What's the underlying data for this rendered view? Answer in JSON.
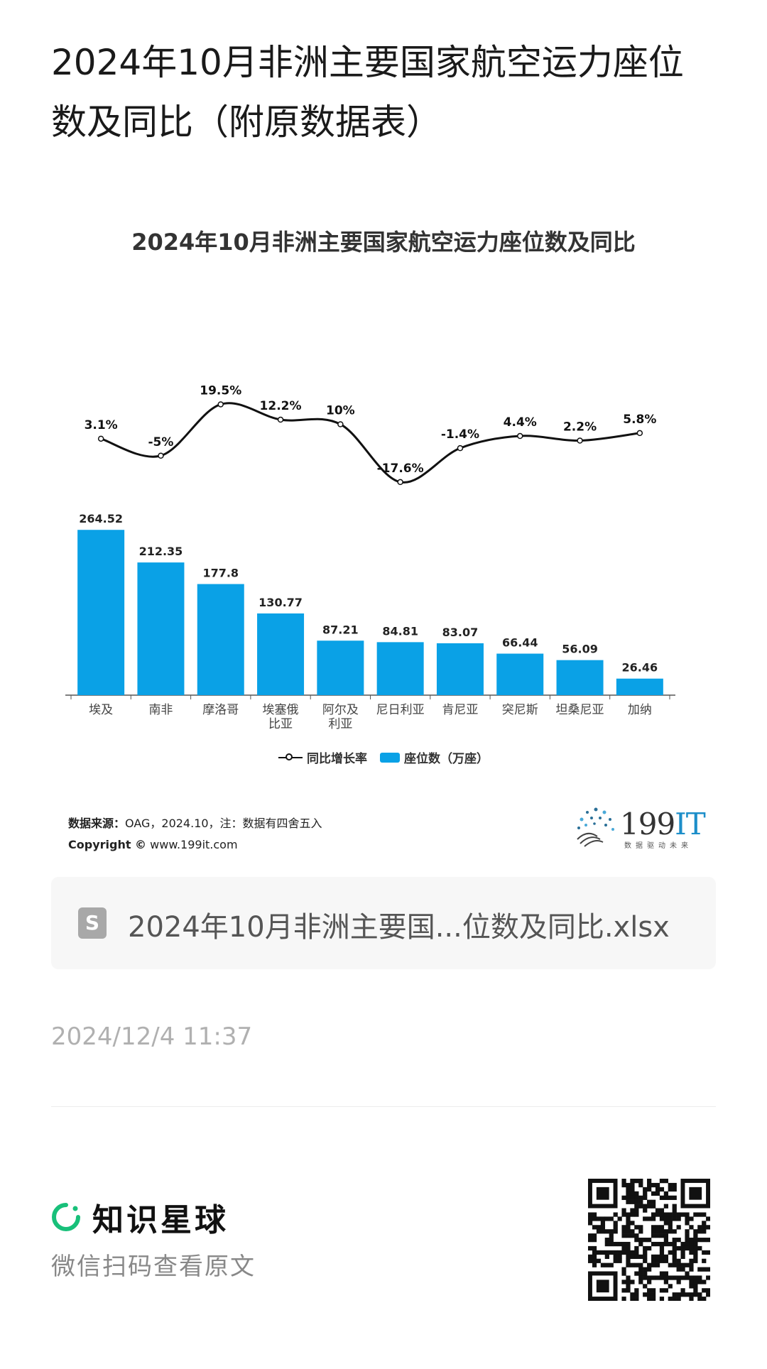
{
  "post": {
    "title": "2024年10月非洲主要国家航空运力座位数及同比（附原数据表）"
  },
  "chart_data": {
    "type": "bar",
    "title": "2024年10月非洲主要国家航空运力座位数及同比",
    "categories": [
      "埃及",
      "南非",
      "摩洛哥",
      "埃塞俄比亚",
      "阿尔及利亚",
      "尼日利亚",
      "肯尼亚",
      "突尼斯",
      "坦桑尼亚",
      "加纳"
    ],
    "category_labels": [
      [
        "埃及"
      ],
      [
        "南非"
      ],
      [
        "摩洛哥"
      ],
      [
        "埃塞俄",
        "比亚"
      ],
      [
        "阿尔及",
        "利亚"
      ],
      [
        "尼日利亚"
      ],
      [
        "肯尼亚"
      ],
      [
        "突尼斯"
      ],
      [
        "坦桑尼亚"
      ],
      [
        "加纳"
      ]
    ],
    "series": [
      {
        "name": "座位数（万座）",
        "type": "bar",
        "color": "#0aa1e6",
        "values": [
          264.52,
          212.35,
          177.8,
          130.77,
          87.21,
          84.81,
          83.07,
          66.44,
          56.09,
          26.46
        ],
        "labels": [
          "264.52",
          "212.35",
          "177.8",
          "130.77",
          "87.21",
          "84.81",
          "83.07",
          "66.44",
          "56.09",
          "26.46"
        ]
      },
      {
        "name": "同比增长率",
        "type": "line",
        "color": "#111111",
        "values": [
          3.1,
          -5,
          19.5,
          12.2,
          10,
          -17.6,
          -1.4,
          4.4,
          2.2,
          5.8
        ],
        "labels": [
          "3.1%",
          "-5%",
          "19.5%",
          "12.2%",
          "10%",
          "-17.6%",
          "-1.4%",
          "4.4%",
          "2.2%",
          "5.8%"
        ]
      }
    ],
    "legend": {
      "line_label": "同比增长率",
      "bar_label": "座位数（万座）",
      "position": "bottom"
    },
    "grid": false
  },
  "source": {
    "label": "数据来源：",
    "text": "OAG，2024.10，注：数据有四舍五入",
    "copyright_label": "Copyright ©",
    "copyright_url": "www.199it.com"
  },
  "logo": {
    "main": "199",
    "accent": "IT",
    "tagline": "数据驱动未来",
    "accent_color": "#1c8ec9"
  },
  "attachment": {
    "icon": "spreadsheet-file-icon",
    "icon_letter": "S",
    "filename": "2024年10月非洲主要国...位数及同比.xlsx"
  },
  "timestamp": "2024/12/4 11:37",
  "footer": {
    "brand_name": "知识星球",
    "brand_color": "#18c07a",
    "subtitle": "微信扫码查看原文",
    "qr_icon": "qr-code-icon"
  }
}
